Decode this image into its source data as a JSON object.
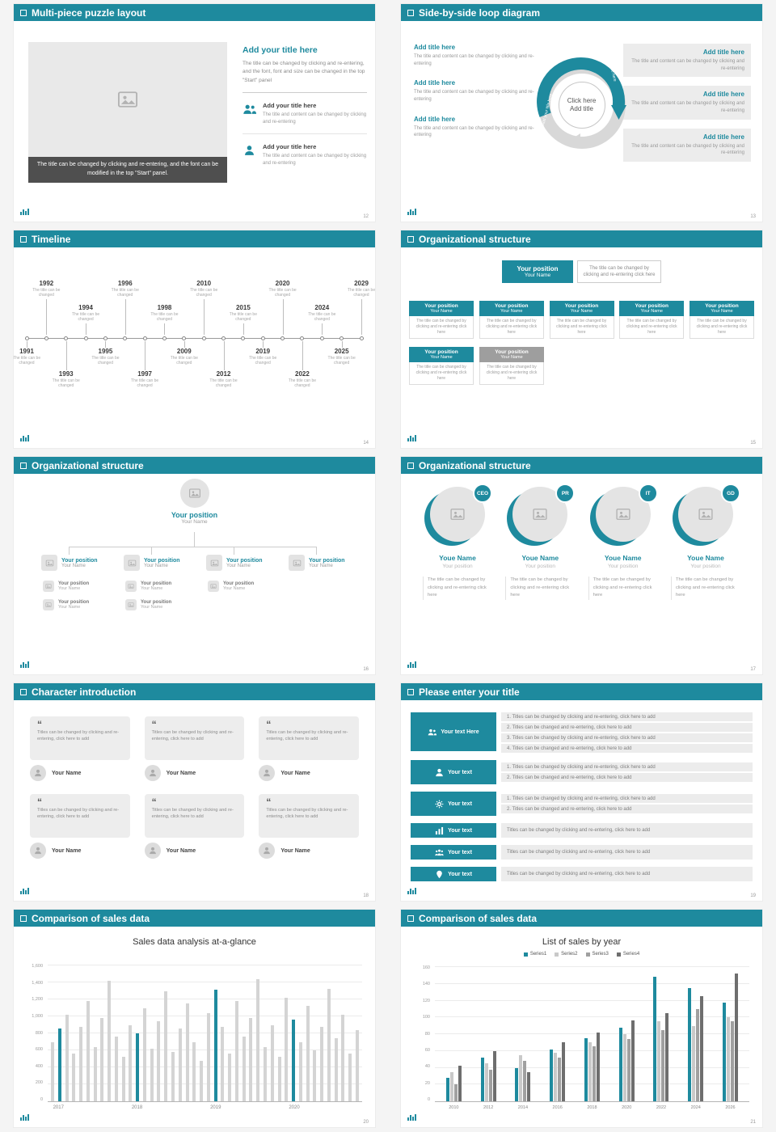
{
  "theme": {
    "teal": "#1e8a9e",
    "gray_box": "#9e9e9e",
    "bar_gray": "#d4d4d4"
  },
  "slides": [
    {
      "title": "Multi-piece puzzle layout",
      "page": "12",
      "image_caption": "The title can be changed by clicking and re-entering, and the font can be modified in the top \"Start\" panel.",
      "right_title": "Add your title here",
      "right_body": "The title can be changed by clicking and re-entering, and the font, font and size can be changed in the top \"Start\" panel",
      "items": [
        {
          "icon": "people-icon",
          "title": "Add your title here",
          "text": "The title and content can be changed by clicking and re-entering"
        },
        {
          "icon": "person-icon",
          "title": "Add your title here",
          "text": "The title and content can be changed by clicking and re-entering"
        }
      ]
    },
    {
      "title": "Side-by-side loop diagram",
      "page": "13",
      "center": [
        "Click here",
        "Add title"
      ],
      "ring_labels": [
        "Add your title here",
        "Add your title here"
      ],
      "left_blocks": [
        {
          "title": "Add title here",
          "text": "The title and content can be changed by clicking and re-entering"
        },
        {
          "title": "Add title here",
          "text": "The title and content can be changed by clicking and re-entering"
        },
        {
          "title": "Add title here",
          "text": "The title and content can be changed by clicking and re-entering"
        }
      ],
      "right_blocks": [
        {
          "title": "Add title here",
          "text": "The title and content can be changed by clicking and re-entering"
        },
        {
          "title": "Add title here",
          "text": "The title and content can be changed by clicking and re-entering"
        },
        {
          "title": "Add title here",
          "text": "The title and content can be changed by clicking and re-entering"
        }
      ]
    },
    {
      "title": "Timeline",
      "page": "14",
      "note": "The title can be changed",
      "entries": [
        {
          "year": "1991",
          "pos": "b1"
        },
        {
          "year": "1992",
          "pos": "a2"
        },
        {
          "year": "1993",
          "pos": "b2"
        },
        {
          "year": "1994",
          "pos": "a1"
        },
        {
          "year": "1995",
          "pos": "b1"
        },
        {
          "year": "1996",
          "pos": "a2"
        },
        {
          "year": "1997",
          "pos": "b2"
        },
        {
          "year": "1998",
          "pos": "a1"
        },
        {
          "year": "2009",
          "pos": "b1"
        },
        {
          "year": "2010",
          "pos": "a2"
        },
        {
          "year": "2012",
          "pos": "b2"
        },
        {
          "year": "2015",
          "pos": "a1"
        },
        {
          "year": "2019",
          "pos": "b1"
        },
        {
          "year": "2020",
          "pos": "a2"
        },
        {
          "year": "2022",
          "pos": "b2"
        },
        {
          "year": "2024",
          "pos": "a1"
        },
        {
          "year": "2025",
          "pos": "b1"
        },
        {
          "year": "2029",
          "pos": "a2"
        }
      ]
    },
    {
      "title": "Organizational structure",
      "page": "15",
      "top_box": {
        "position": "Your position",
        "name": "Your Name"
      },
      "top_note": "The title can be changed by clicking and re-entering click here",
      "box_text": "The title can be changed by clicking and re-entering click here",
      "row1": [
        {
          "position": "Your position",
          "name": "Your Name",
          "variant": "teal"
        },
        {
          "position": "Your position",
          "name": "Your Name",
          "variant": "teal"
        },
        {
          "position": "Your position",
          "name": "Your Name",
          "variant": "teal"
        },
        {
          "position": "Your position",
          "name": "Your Name",
          "variant": "teal"
        },
        {
          "position": "Your position",
          "name": "Your Name",
          "variant": "teal"
        }
      ],
      "row2": [
        {
          "position": "Your position",
          "name": "Your Name",
          "variant": "teal"
        },
        {
          "position": "Your position",
          "name": "Your Name",
          "variant": "gray"
        }
      ]
    },
    {
      "title": "Organizational structure",
      "page": "16",
      "root": {
        "position": "Your position",
        "name": "Your Name"
      },
      "branches": [
        {
          "position": "Your position",
          "name": "Your Name",
          "children": [
            {
              "position": "Your position",
              "name": "Your Name"
            },
            {
              "position": "Your position",
              "name": "Your Name"
            }
          ]
        },
        {
          "position": "Your position",
          "name": "Your Name",
          "children": [
            {
              "position": "Your position",
              "name": "Your Name"
            },
            {
              "position": "Your position",
              "name": "Your Name"
            }
          ]
        },
        {
          "position": "Your position",
          "name": "Your Name",
          "children": [
            {
              "position": "Your position",
              "name": "Your Name"
            }
          ]
        },
        {
          "position": "Your position",
          "name": "Your Name",
          "children": []
        }
      ]
    },
    {
      "title": "Organizational structure",
      "page": "17",
      "profiles": [
        {
          "badge": "CEO",
          "name": "Youe Name",
          "position": "Your position",
          "text": "The title can be changed by clicking and re-entering click here"
        },
        {
          "badge": "PR",
          "name": "Youe Name",
          "position": "Your position",
          "text": "The title can be changed by clicking and re-entering click here"
        },
        {
          "badge": "IT",
          "name": "Youe Name",
          "position": "Your position",
          "text": "The title can be changed by clicking and re-entering click here"
        },
        {
          "badge": "GD",
          "name": "Youe Name",
          "position": "Your position",
          "text": "The title can be changed by clicking and re-entering click here"
        }
      ]
    },
    {
      "title": "Character introduction",
      "page": "18",
      "cards": [
        {
          "text": "Titles can be changed by clicking and re-entering, click here to add",
          "name": "Your Name"
        },
        {
          "text": "Titles can be changed by clicking and re-entering, click here to add",
          "name": "Your Name"
        },
        {
          "text": "Titles can be changed by clicking and re-entering, click here to add",
          "name": "Your Name"
        },
        {
          "text": "Titles can be changed by clicking and re-entering, click here to add",
          "name": "Your Name"
        },
        {
          "text": "Titles can be changed by clicking and re-entering, click here to add",
          "name": "Your Name"
        },
        {
          "text": "Titles can be changed by clicking and re-entering, click here to add",
          "name": "Your Name"
        }
      ]
    },
    {
      "title": "Please enter your title",
      "page": "19",
      "rows": [
        {
          "label": "Your text Here",
          "icon": "people",
          "numbered": true,
          "lines": [
            "Titles can be changed by clicking and re-entering, click here to add",
            "Titles can be changed and re-entering, click here to add",
            "Titles can be changed by clicking and re-entering, click here to add",
            "Titles can be changed and re-entering, click here to add"
          ]
        },
        {
          "label": "Your text",
          "icon": "person",
          "numbered": true,
          "lines": [
            "Titles can be changed by clicking and re-entering, click here to add",
            "Titles can be changed and re-entering, click here to add"
          ]
        },
        {
          "label": "Your text",
          "icon": "gear",
          "numbered": true,
          "lines": [
            "Titles can be changed by clicking and re-entering, click here to add",
            "Titles can be changed and re-entering, click here to add"
          ]
        },
        {
          "label": "Your text",
          "icon": "chart",
          "numbered": false,
          "lines": [
            "Titles can be changed by clicking and re-entering, click here to add"
          ]
        },
        {
          "label": "Your text",
          "icon": "group",
          "numbered": false,
          "lines": [
            "Titles can be changed by clicking and re-entering, click here to add"
          ]
        },
        {
          "label": "Your text",
          "icon": "pin",
          "numbered": false,
          "lines": [
            "Titles can be changed by clicking and re-entering, click here to add"
          ]
        }
      ]
    },
    {
      "title": "Comparison of sales data",
      "page": "20",
      "chart_title": "Sales data analysis at-a-glance",
      "chart_index": 0
    },
    {
      "title": "Comparison of sales data",
      "page": "21",
      "chart_title": "List of sales by year",
      "chart_index": 1
    }
  ],
  "chart_data": [
    {
      "type": "bar",
      "title": "Sales data analysis at-a-glance",
      "xlabel": "",
      "ylabel": "",
      "ylim": [
        0,
        1600
      ],
      "ytick_step": 200,
      "grid": true,
      "bar_color": "#d4d4d4",
      "highlight_color": "#1e8a9e",
      "categories": [
        "2017",
        "2018",
        "2019",
        "2020"
      ],
      "category_positions": [
        1,
        12,
        23,
        34
      ],
      "highlight_indices": [
        1,
        12,
        23,
        34
      ],
      "values": [
        700,
        860,
        1020,
        560,
        880,
        1180,
        640,
        980,
        1420,
        760,
        520,
        900,
        800,
        1100,
        620,
        940,
        1300,
        580,
        860,
        1150,
        700,
        480,
        1040,
        1310,
        880,
        560,
        1180,
        760,
        980,
        1440,
        640,
        900,
        520,
        1220,
        960,
        700,
        1120,
        600,
        880,
        1320,
        740,
        1020,
        560,
        840
      ]
    },
    {
      "type": "bar",
      "title": "List of sales by year",
      "xlabel": "",
      "ylabel": "",
      "ylim": [
        0,
        160
      ],
      "ytick_step": 20,
      "grid": true,
      "legend_position": "top",
      "categories": [
        "2010",
        "2012",
        "2014",
        "2016",
        "2018",
        "2020",
        "2022",
        "2024",
        "2026"
      ],
      "series": [
        {
          "name": "Series1",
          "color": "#1e8a9e",
          "values": [
            28,
            52,
            40,
            62,
            75,
            88,
            148,
            135,
            118
          ]
        },
        {
          "name": "Series2",
          "color": "#c9c9c9",
          "values": [
            35,
            45,
            55,
            58,
            70,
            80,
            95,
            90,
            100
          ]
        },
        {
          "name": "Series3",
          "color": "#a0a0a0",
          "values": [
            20,
            38,
            48,
            52,
            66,
            74,
            85,
            110,
            95
          ]
        },
        {
          "name": "Series4",
          "color": "#6e6e6e",
          "values": [
            42,
            60,
            35,
            70,
            82,
            96,
            105,
            125,
            152
          ]
        }
      ]
    }
  ]
}
